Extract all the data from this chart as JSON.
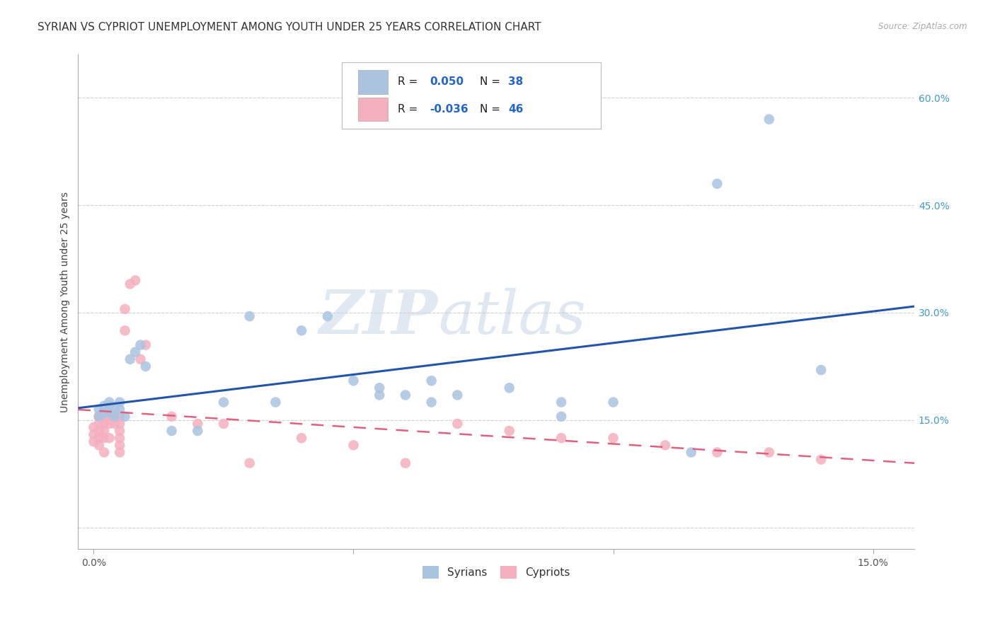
{
  "title": "SYRIAN VS CYPRIOT UNEMPLOYMENT AMONG YOUTH UNDER 25 YEARS CORRELATION CHART",
  "source": "Source: ZipAtlas.com",
  "ylabel": "Unemployment Among Youth under 25 years",
  "xlim": [
    -0.003,
    0.158
  ],
  "ylim": [
    -0.03,
    0.66
  ],
  "background_color": "#ffffff",
  "grid_color": "#d0d0d0",
  "syrian_color": "#aac4e0",
  "cypriot_color": "#f5b0c0",
  "syrian_line_color": "#2255aa",
  "cypriot_line_color": "#e06080",
  "legend_r_syrian": "0.050",
  "legend_n_syrian": "38",
  "legend_r_cypriot": "-0.036",
  "legend_n_cypriot": "46",
  "syrian_x": [
    0.001,
    0.001,
    0.002,
    0.002,
    0.003,
    0.003,
    0.003,
    0.004,
    0.004,
    0.005,
    0.005,
    0.006,
    0.007,
    0.008,
    0.009,
    0.01,
    0.015,
    0.02,
    0.025,
    0.03,
    0.035,
    0.04,
    0.045,
    0.05,
    0.055,
    0.055,
    0.06,
    0.065,
    0.065,
    0.07,
    0.08,
    0.09,
    0.09,
    0.1,
    0.115,
    0.12,
    0.13,
    0.14
  ],
  "syrian_y": [
    0.165,
    0.155,
    0.17,
    0.16,
    0.175,
    0.16,
    0.17,
    0.155,
    0.165,
    0.165,
    0.175,
    0.155,
    0.235,
    0.245,
    0.255,
    0.225,
    0.135,
    0.135,
    0.175,
    0.295,
    0.175,
    0.275,
    0.295,
    0.205,
    0.185,
    0.195,
    0.185,
    0.205,
    0.175,
    0.185,
    0.195,
    0.155,
    0.175,
    0.175,
    0.105,
    0.48,
    0.57,
    0.22
  ],
  "cypriot_x": [
    0.0,
    0.0,
    0.0,
    0.001,
    0.001,
    0.001,
    0.001,
    0.001,
    0.001,
    0.002,
    0.002,
    0.002,
    0.002,
    0.002,
    0.003,
    0.003,
    0.003,
    0.004,
    0.004,
    0.005,
    0.005,
    0.005,
    0.005,
    0.005,
    0.005,
    0.006,
    0.006,
    0.007,
    0.008,
    0.009,
    0.01,
    0.015,
    0.02,
    0.025,
    0.03,
    0.04,
    0.05,
    0.06,
    0.07,
    0.08,
    0.09,
    0.1,
    0.11,
    0.12,
    0.13,
    0.14
  ],
  "cypriot_y": [
    0.14,
    0.13,
    0.12,
    0.155,
    0.155,
    0.145,
    0.135,
    0.125,
    0.115,
    0.155,
    0.145,
    0.135,
    0.125,
    0.105,
    0.155,
    0.145,
    0.125,
    0.155,
    0.145,
    0.155,
    0.145,
    0.135,
    0.125,
    0.115,
    0.105,
    0.305,
    0.275,
    0.34,
    0.345,
    0.235,
    0.255,
    0.155,
    0.145,
    0.145,
    0.09,
    0.125,
    0.115,
    0.09,
    0.145,
    0.135,
    0.125,
    0.125,
    0.115,
    0.105,
    0.105,
    0.095
  ],
  "watermark_line1": "ZIP",
  "watermark_line2": "atlas",
  "title_fontsize": 11,
  "axis_label_fontsize": 10,
  "tick_fontsize": 10
}
